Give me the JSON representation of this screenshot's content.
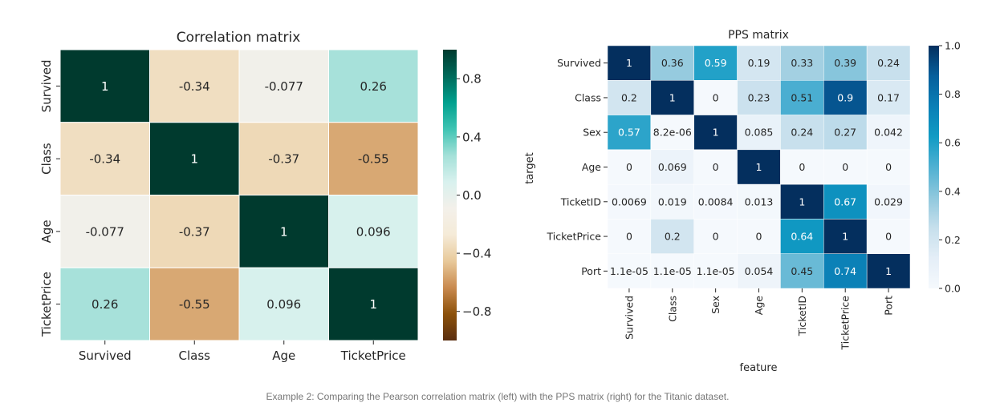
{
  "chart_data": [
    {
      "type": "heatmap",
      "title": "Correlation matrix",
      "xlabel": "",
      "ylabel": "",
      "x_categories": [
        "Survived",
        "Class",
        "Age",
        "TicketPrice"
      ],
      "y_categories": [
        "Survived",
        "Class",
        "Age",
        "TicketPrice"
      ],
      "values": [
        [
          1,
          -0.34,
          -0.077,
          0.26
        ],
        [
          -0.34,
          1,
          -0.37,
          -0.55
        ],
        [
          -0.077,
          -0.37,
          1,
          0.096
        ],
        [
          0.26,
          -0.55,
          0.096,
          1
        ]
      ],
      "annotations": [
        [
          "1",
          "-0.34",
          "-0.077",
          "0.26"
        ],
        [
          "-0.34",
          "1",
          "-0.37",
          "-0.55"
        ],
        [
          "-0.077",
          "-0.37",
          "1",
          "0.096"
        ],
        [
          "0.26",
          "-0.55",
          "0.096",
          "1"
        ]
      ],
      "colorbar": {
        "range": [
          -1,
          1
        ],
        "ticks": [
          "0.8",
          "0.4",
          "0.0",
          "−0.4",
          "−0.8"
        ],
        "tick_values": [
          0.8,
          0.4,
          0,
          -0.4,
          -0.8
        ],
        "colormap": "brown-white-teal diverging"
      },
      "colors": [
        "#5a2e0f",
        "#8c510a",
        "#c98a4f",
        "#e8c99a",
        "#f5ebd8",
        "#f3f0ea",
        "#d8f1ee",
        "#a3e0d8",
        "#3fc4b3",
        "#00a08e",
        "#006a5a",
        "#003a2e"
      ]
    },
    {
      "type": "heatmap",
      "title": "PPS matrix",
      "xlabel": "feature",
      "ylabel": "target",
      "x_categories": [
        "Survived",
        "Class",
        "Sex",
        "Age",
        "TicketID",
        "TicketPrice",
        "Port"
      ],
      "y_categories": [
        "Survived",
        "Class",
        "Sex",
        "Age",
        "TicketID",
        "TicketPrice",
        "Port"
      ],
      "values": [
        [
          1,
          0.36,
          0.59,
          0.19,
          0.33,
          0.39,
          0.24
        ],
        [
          0.2,
          1,
          0,
          0.23,
          0.51,
          0.9,
          0.17
        ],
        [
          0.57,
          8.2e-06,
          1,
          0.085,
          0.24,
          0.27,
          0.042
        ],
        [
          0,
          0.069,
          0,
          1,
          0,
          0,
          0
        ],
        [
          0.0069,
          0.019,
          0.0084,
          0.013,
          1,
          0.67,
          0.029
        ],
        [
          0,
          0.2,
          0,
          0,
          0.64,
          1,
          0
        ],
        [
          1.1e-05,
          1.1e-05,
          1.1e-05,
          0.054,
          0.45,
          0.74,
          1
        ]
      ],
      "annotations": [
        [
          "1",
          "0.36",
          "0.59",
          "0.19",
          "0.33",
          "0.39",
          "0.24"
        ],
        [
          "0.2",
          "1",
          "0",
          "0.23",
          "0.51",
          "0.9",
          "0.17"
        ],
        [
          "0.57",
          "8.2e-06",
          "1",
          "0.085",
          "0.24",
          "0.27",
          "0.042"
        ],
        [
          "0",
          "0.069",
          "0",
          "1",
          "0",
          "0",
          "0"
        ],
        [
          "0.0069",
          "0.019",
          "0.0084",
          "0.013",
          "1",
          "0.67",
          "0.029"
        ],
        [
          "0",
          "0.2",
          "0",
          "0",
          "0.64",
          "1",
          "0"
        ],
        [
          "1.1e-05",
          "1.1e-05",
          "1.1e-05",
          "0.054",
          "0.45",
          "0.74",
          "1"
        ]
      ],
      "colorbar": {
        "range": [
          0,
          1
        ],
        "ticks": [
          "1.0",
          "0.8",
          "0.6",
          "0.4",
          "0.2",
          "0.0"
        ],
        "tick_values": [
          1,
          0.8,
          0.6,
          0.4,
          0.2,
          0
        ],
        "colormap": "white-to-dark-blue sequential"
      },
      "colors": [
        "#f5f9fd",
        "#e4eef7",
        "#c6dfec",
        "#8fc8dd",
        "#4fb0d2",
        "#119bc4",
        "#0a7fb6",
        "#065f9c",
        "#042f5e"
      ]
    }
  ],
  "caption": "Example 2: Comparing the Pearson correlation matrix (left) with the PPS matrix (right) for the Titanic dataset."
}
